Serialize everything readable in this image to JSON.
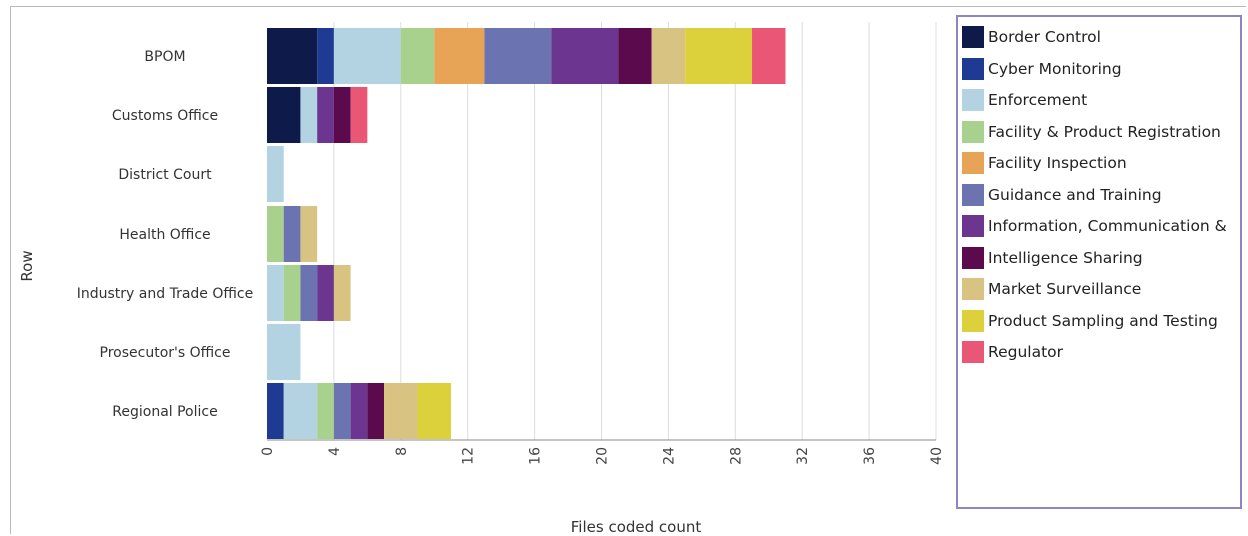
{
  "chart_data": {
    "type": "bar",
    "orientation": "horizontal",
    "stacked": true,
    "xlabel": "Files coded count",
    "ylabel": "Row",
    "xlim": [
      0,
      40
    ],
    "xticks": [
      0,
      4,
      8,
      12,
      16,
      20,
      24,
      28,
      32,
      36,
      40
    ],
    "grid": "vertical",
    "legend_position": "right",
    "categories": [
      "BPOM",
      "Customs Office",
      "District Court",
      "Health Office",
      "Industry and Trade Office",
      "Prosecutor's Office",
      "Regional Police"
    ],
    "series": [
      {
        "name": "Border Control",
        "color": "#0d1a4a",
        "values": [
          3,
          2,
          0,
          0,
          0,
          0,
          0
        ]
      },
      {
        "name": "Cyber Monitoring",
        "color": "#1f3a93",
        "values": [
          1,
          0,
          0,
          0,
          0,
          0,
          1
        ]
      },
      {
        "name": "Enforcement",
        "color": "#b3d2e2",
        "values": [
          4,
          1,
          1,
          0,
          1,
          2,
          2
        ]
      },
      {
        "name": "Facility & Product Registration",
        "color": "#a9d18e",
        "values": [
          2,
          0,
          0,
          1,
          1,
          0,
          1
        ]
      },
      {
        "name": "Facility Inspection",
        "color": "#e8a456",
        "values": [
          3,
          0,
          0,
          0,
          0,
          0,
          0
        ]
      },
      {
        "name": "Guidance and Training",
        "color": "#6b74b0",
        "values": [
          4,
          0,
          0,
          1,
          1,
          0,
          1
        ]
      },
      {
        "name": "Information, Communication &",
        "color": "#6b3590",
        "values": [
          4,
          1,
          0,
          0,
          1,
          0,
          1
        ]
      },
      {
        "name": "Intelligence Sharing",
        "color": "#5a0a4d",
        "values": [
          2,
          1,
          0,
          0,
          0,
          0,
          1
        ]
      },
      {
        "name": "Market Surveillance",
        "color": "#d9c383",
        "values": [
          2,
          0,
          0,
          1,
          1,
          0,
          2
        ]
      },
      {
        "name": "Product Sampling and Testing",
        "color": "#dcd13b",
        "values": [
          4,
          0,
          0,
          0,
          0,
          0,
          2
        ]
      },
      {
        "name": "Regulator",
        "color": "#ea5676",
        "values": [
          2,
          1,
          0,
          0,
          0,
          0,
          0
        ]
      }
    ]
  }
}
